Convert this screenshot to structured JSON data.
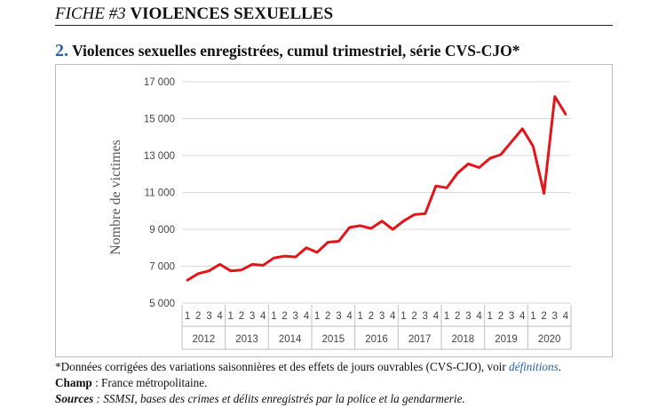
{
  "header": {
    "fiche": "FICHE #3",
    "topic": "VIOLENCES SEXUELLES"
  },
  "subtitle": {
    "number": "2.",
    "text": "Violences sexuelles enregistrées, cumul trimestriel, série CVS-CJO*"
  },
  "footnotes": {
    "note_text": "*Données corrigées des variations saisonnières et des effets de jours ouvrables (CVS-CJO), voir ",
    "note_link": "définitions",
    "note_end": ".",
    "champ_label": "Champ",
    "champ_text": " : France métropolitaine.",
    "sources_label": "Sources",
    "sources_text": " : SSMSI, bases des crimes et délits enregistrés par la police et la gendarmerie."
  },
  "chart_data": {
    "type": "line",
    "title": "Violences sexuelles enregistrées, cumul trimestriel, série CVS-CJO*",
    "ylabel": "Nombre de victimes",
    "xlabel": "",
    "ylim": [
      5000,
      17000
    ],
    "yticks": [
      5000,
      7000,
      9000,
      11000,
      13000,
      15000,
      17000
    ],
    "ytick_labels": [
      "5 000",
      "7 000",
      "9 000",
      "11 000",
      "13 000",
      "15 000",
      "17 000"
    ],
    "years": [
      "2012",
      "2013",
      "2014",
      "2015",
      "2016",
      "2017",
      "2018",
      "2019",
      "2020"
    ],
    "quarter_labels": [
      "1",
      "2",
      "3",
      "4"
    ],
    "grid": true,
    "color": "#e3151a",
    "series": [
      {
        "values": [
          6250,
          6600,
          6750,
          7100,
          6750,
          6800,
          7100,
          7050,
          7450,
          7550,
          7500,
          8000,
          7750,
          8300,
          8350,
          9100,
          9200,
          9050,
          9450,
          9000,
          9450,
          9800,
          9850,
          11350,
          11250,
          12050,
          12550,
          12350,
          12850,
          13050,
          13750,
          14450,
          13500,
          10950,
          16200,
          15250
        ]
      }
    ]
  }
}
